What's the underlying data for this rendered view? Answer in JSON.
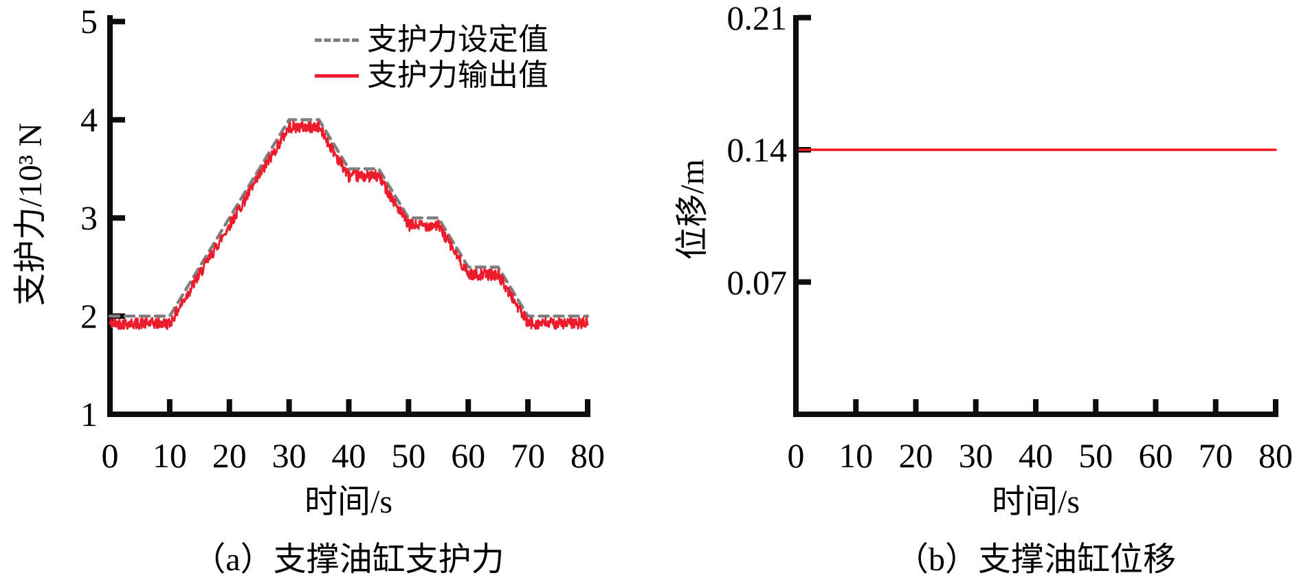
{
  "figure": {
    "background": "#ffffff",
    "axis_color": "#0d0d0d"
  },
  "chart_data": [
    {
      "id": "support-force",
      "type": "line",
      "caption": "（a）支撑油缸支护力",
      "xlabel": "时间/s",
      "ylabel": "支护力/10³ N",
      "xlim": [
        0,
        80
      ],
      "ylim": [
        1,
        5.066
      ],
      "xticks": [
        "0",
        "10",
        "20",
        "30",
        "40",
        "50",
        "60",
        "70",
        "80"
      ],
      "yticks": [
        "1",
        "2",
        "3",
        "4",
        "5"
      ],
      "grid": false,
      "legend": {
        "position": "top-right-inside",
        "entries": [
          {
            "label": "支护力设定值",
            "style": "dashed",
            "color": "#7f7f7f"
          },
          {
            "label": "支护力输出值",
            "style": "solid",
            "color": "#ec1c2c"
          }
        ]
      },
      "series": [
        {
          "name": "支护力设定值",
          "style": "dashed",
          "color": "#7f7f7f",
          "width": 4.5,
          "points": [
            [
              0,
              2
            ],
            [
              10,
              2
            ],
            [
              30,
              4
            ],
            [
              35,
              4
            ],
            [
              40,
              3.5
            ],
            [
              45,
              3.5
            ],
            [
              50,
              3
            ],
            [
              55,
              3
            ],
            [
              60,
              2.5
            ],
            [
              65,
              2.5
            ],
            [
              70,
              2
            ],
            [
              80,
              2
            ]
          ]
        },
        {
          "name": "支护力输出值",
          "style": "noisy",
          "color": "#ec1c2c",
          "width": 2.8,
          "base_points": [
            [
              0,
              2
            ],
            [
              10,
              2
            ],
            [
              30,
              4
            ],
            [
              35,
              4
            ],
            [
              40,
              3.5
            ],
            [
              45,
              3.5
            ],
            [
              50,
              3
            ],
            [
              55,
              3
            ],
            [
              60,
              2.5
            ],
            [
              65,
              2.5
            ],
            [
              70,
              2
            ],
            [
              80,
              2
            ]
          ],
          "offset": -0.075,
          "noise_amplitude": 0.058,
          "sample_step": 0.08
        }
      ]
    },
    {
      "id": "displacement",
      "type": "line",
      "caption": "（b）支撑油缸位移",
      "xlabel": "时间/s",
      "ylabel": "位移/m",
      "xlim": [
        0,
        80
      ],
      "ylim": [
        0,
        0.2113
      ],
      "xticks": [
        "0",
        "10",
        "20",
        "30",
        "40",
        "50",
        "60",
        "70",
        "80"
      ],
      "yticks": [
        "0.07",
        "0.14",
        "0.21"
      ],
      "grid": false,
      "legend": null,
      "series": [
        {
          "name": "位移",
          "style": "solid",
          "color": "#f2181f",
          "width": 3.4,
          "points": [
            [
              0.6,
              0.14
            ],
            [
              80,
              0.14
            ]
          ]
        }
      ]
    }
  ]
}
